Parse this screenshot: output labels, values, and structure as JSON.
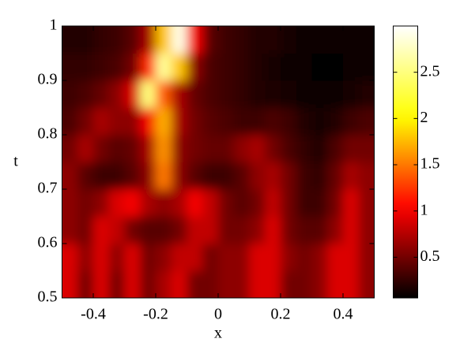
{
  "chart_data": {
    "type": "heatmap",
    "colormap": "hot",
    "xlabel": "x",
    "ylabel": "t",
    "xlim": [
      -0.5,
      0.5
    ],
    "ylim": [
      0.5,
      1
    ],
    "xticks": [
      -0.4,
      -0.2,
      0,
      0.2,
      0.4
    ],
    "yticks": [
      0.5,
      0.6,
      0.7,
      0.8,
      0.9,
      1
    ],
    "clim": [
      0.06,
      3.0
    ],
    "cticks": [
      0.5,
      1,
      1.5,
      2,
      2.5
    ],
    "x": [
      -0.475,
      -0.425,
      -0.375,
      -0.325,
      -0.275,
      -0.225,
      -0.175,
      -0.125,
      -0.075,
      -0.025,
      0.025,
      0.075,
      0.125,
      0.175,
      0.225,
      0.275,
      0.325,
      0.375,
      0.425,
      0.475
    ],
    "y": [
      0.525,
      0.575,
      0.625,
      0.675,
      0.725,
      0.775,
      0.825,
      0.875,
      0.925,
      0.975
    ],
    "z": [
      [
        0.9,
        0.5,
        0.9,
        0.5,
        0.9,
        0.5,
        0.7,
        0.9,
        0.5,
        0.5,
        0.6,
        0.6,
        0.9,
        0.9,
        0.5,
        0.5,
        0.6,
        0.9,
        0.9,
        0.6
      ],
      [
        0.9,
        0.6,
        0.9,
        0.6,
        0.9,
        0.5,
        0.6,
        0.8,
        0.8,
        0.5,
        0.6,
        0.6,
        0.9,
        0.9,
        0.6,
        0.5,
        0.6,
        0.9,
        0.9,
        0.6
      ],
      [
        0.6,
        0.5,
        0.9,
        0.8,
        0.5,
        0.4,
        0.4,
        0.5,
        0.8,
        0.8,
        0.5,
        0.5,
        0.6,
        0.9,
        0.5,
        0.4,
        0.4,
        0.6,
        0.9,
        0.6
      ],
      [
        0.6,
        0.5,
        0.6,
        0.9,
        1.0,
        0.7,
        0.6,
        0.7,
        1.0,
        0.8,
        0.5,
        0.4,
        0.5,
        0.8,
        0.5,
        0.3,
        0.3,
        0.5,
        0.9,
        0.6
      ],
      [
        0.6,
        0.4,
        0.3,
        0.3,
        0.4,
        0.6,
        1.5,
        0.6,
        0.4,
        0.3,
        0.3,
        0.4,
        0.6,
        0.7,
        0.5,
        0.3,
        0.25,
        0.45,
        0.7,
        0.6
      ],
      [
        0.5,
        0.7,
        0.5,
        0.4,
        0.45,
        0.7,
        1.6,
        0.6,
        0.5,
        0.45,
        0.45,
        0.6,
        0.7,
        0.5,
        0.35,
        0.25,
        0.2,
        0.35,
        0.5,
        0.5
      ],
      [
        0.35,
        0.5,
        0.7,
        0.6,
        0.6,
        1.0,
        1.7,
        0.7,
        0.5,
        0.4,
        0.35,
        0.3,
        0.3,
        0.35,
        0.3,
        0.2,
        0.15,
        0.2,
        0.3,
        0.35
      ],
      [
        0.3,
        0.35,
        0.45,
        0.6,
        0.9,
        2.5,
        1.4,
        0.7,
        0.45,
        0.35,
        0.3,
        0.25,
        0.2,
        0.18,
        0.15,
        0.12,
        0.1,
        0.12,
        0.15,
        0.2
      ],
      [
        0.25,
        0.25,
        0.3,
        0.35,
        0.5,
        1.2,
        2.6,
        1.8,
        0.6,
        0.35,
        0.3,
        0.25,
        0.2,
        0.15,
        0.12,
        0.1,
        0.08,
        0.08,
        0.1,
        0.12
      ],
      [
        0.2,
        0.2,
        0.25,
        0.3,
        0.4,
        0.7,
        1.8,
        2.9,
        1.0,
        0.4,
        0.3,
        0.25,
        0.2,
        0.2,
        0.15,
        0.1,
        0.1,
        0.1,
        0.1,
        0.1
      ]
    ]
  }
}
